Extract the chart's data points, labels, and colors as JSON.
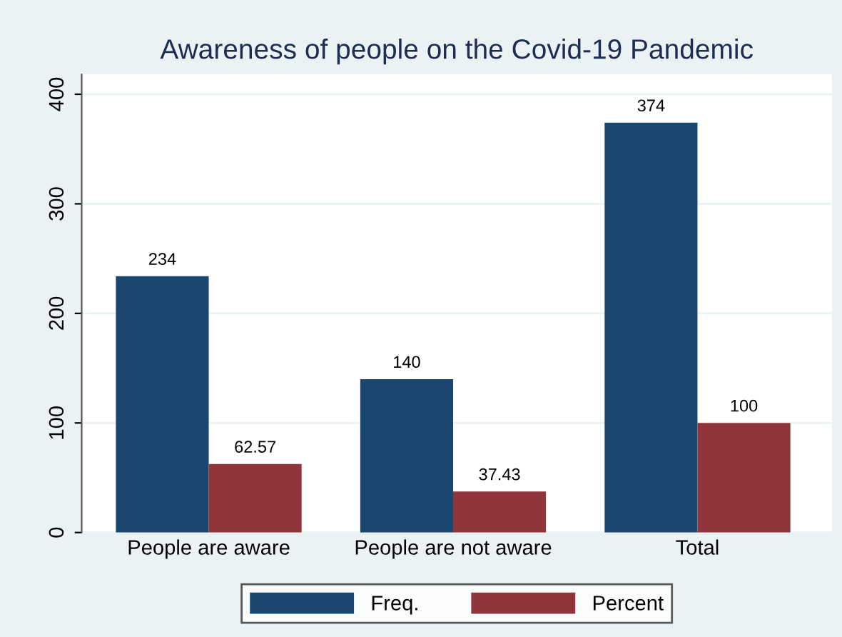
{
  "chart_data": {
    "type": "bar",
    "title": "Awareness of people on the Covid-19 Pandemic",
    "categories": [
      "People are aware",
      "People are not aware",
      "Total"
    ],
    "series": [
      {
        "name": "Freq.",
        "color": "#1a476f",
        "values": [
          234,
          140,
          374
        ]
      },
      {
        "name": "Percent",
        "color": "#90353b",
        "values": [
          62.57,
          37.43,
          100
        ]
      }
    ],
    "ylim": [
      0,
      418
    ],
    "yticks": [
      0,
      100,
      200,
      300,
      400
    ],
    "grid": "y",
    "legend": "bottom",
    "data_labels": true
  }
}
